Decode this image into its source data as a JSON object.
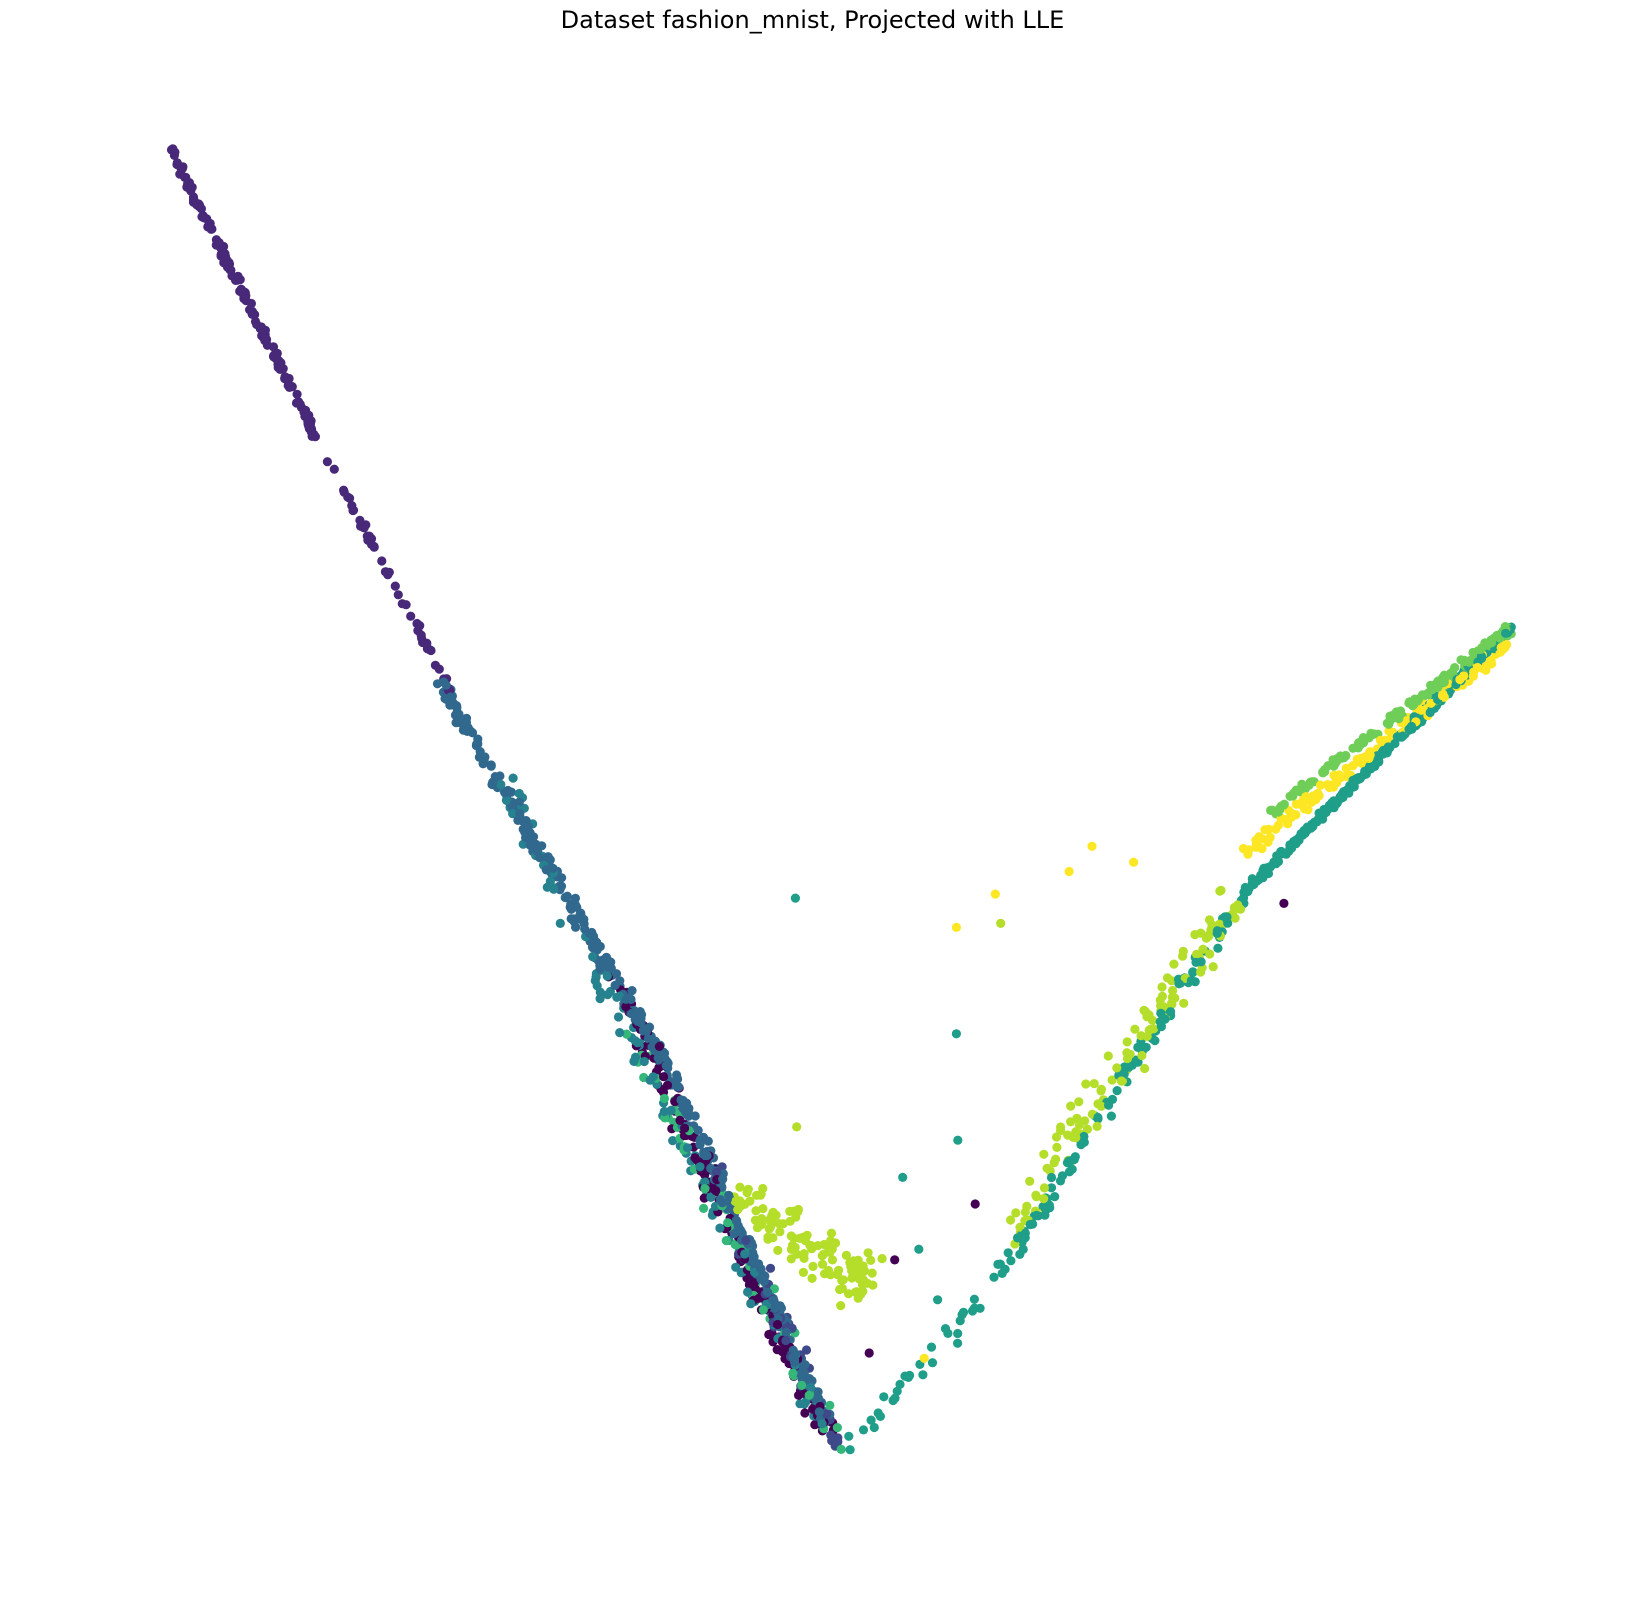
{
  "chart_data": {
    "type": "scatter",
    "title": "Dataset fashion_mnist, Projected with LLE",
    "xlabel": "",
    "ylabel": "",
    "axes_visible": false,
    "grid": false,
    "legend": "none",
    "xlim": [
      0,
      100
    ],
    "ylim": [
      0,
      100
    ],
    "colormap": "viridis",
    "class_colors": {
      "0": "#440154",
      "1": "#482878",
      "2": "#3e4989",
      "3": "#31688e",
      "4": "#26828e",
      "5": "#1f9e89",
      "6": "#35b779",
      "7": "#6ece58",
      "8": "#b5de2b",
      "9": "#fde725"
    },
    "segments": [
      {
        "class": 1,
        "from": [
          0,
          100
        ],
        "to": [
          11,
          78
        ],
        "count": 160,
        "jitter": 0.25
      },
      {
        "class": 1,
        "from": [
          11,
          78
        ],
        "to": [
          21,
          59
        ],
        "count": 50,
        "jitter": 0.2
      },
      {
        "class": 3,
        "from": [
          20,
          60
        ],
        "to": [
          37,
          31
        ],
        "count": 230,
        "jitter": 0.45
      },
      {
        "class": 3,
        "from": [
          37,
          31
        ],
        "to": [
          49,
          4
        ],
        "count": 200,
        "jitter": 0.45
      },
      {
        "class": 4,
        "from": [
          24,
          54
        ],
        "to": [
          49,
          3
        ],
        "count": 120,
        "jitter": 0.7
      },
      {
        "class": 0,
        "from": [
          33,
          38
        ],
        "to": [
          49,
          3
        ],
        "count": 150,
        "jitter": 0.7
      },
      {
        "class": 6,
        "from": [
          34,
          34
        ],
        "to": [
          50,
          2
        ],
        "count": 60,
        "jitter": 0.8
      },
      {
        "class": 2,
        "from": [
          40,
          24
        ],
        "to": [
          50,
          2
        ],
        "count": 45,
        "jitter": 0.8
      },
      {
        "class": 5,
        "from": [
          50,
          2
        ],
        "to": [
          61,
          14
        ],
        "count": 30,
        "jitter": 0.6
      },
      {
        "class": 5,
        "from": [
          61,
          14
        ],
        "to": [
          80,
          44
        ],
        "count": 110,
        "jitter": 0.5
      },
      {
        "class": 5,
        "from": [
          80,
          44
        ],
        "to": [
          100,
          64
        ],
        "count": 280,
        "jitter": 0.25
      },
      {
        "class": 7,
        "from": [
          82,
          50
        ],
        "to": [
          100,
          64
        ],
        "count": 150,
        "jitter": 0.3
      },
      {
        "class": 9,
        "from": [
          80,
          47
        ],
        "to": [
          100,
          63
        ],
        "count": 150,
        "jitter": 0.45
      },
      {
        "class": 8,
        "from": [
          62,
          18
        ],
        "to": [
          80,
          44
        ],
        "count": 120,
        "jitter": 1.4
      },
      {
        "class": 8,
        "from": [
          42,
          22
        ],
        "to": [
          52,
          14
        ],
        "count": 110,
        "jitter": 1.8
      }
    ],
    "points": [
      {
        "class": 5,
        "x": 46.6,
        "y": 43.6
      },
      {
        "class": 8,
        "x": 46.7,
        "y": 26.4
      },
      {
        "class": 5,
        "x": 58.7,
        "y": 25.4
      },
      {
        "class": 5,
        "x": 58.6,
        "y": 33.4
      },
      {
        "class": 9,
        "x": 58.6,
        "y": 41.4
      },
      {
        "class": 9,
        "x": 61.5,
        "y": 43.9
      },
      {
        "class": 8,
        "x": 61.9,
        "y": 41.7
      },
      {
        "class": 9,
        "x": 67.0,
        "y": 45.6
      },
      {
        "class": 9,
        "x": 68.7,
        "y": 47.5
      },
      {
        "class": 9,
        "x": 71.8,
        "y": 46.3
      },
      {
        "class": 0,
        "x": 83.0,
        "y": 43.2
      },
      {
        "class": 0,
        "x": 60.0,
        "y": 20.6
      },
      {
        "class": 5,
        "x": 54.6,
        "y": 22.6
      },
      {
        "class": 5,
        "x": 55.8,
        "y": 17.2
      },
      {
        "class": 5,
        "x": 57.2,
        "y": 13.4
      },
      {
        "class": 9,
        "x": 56.2,
        "y": 9.0
      },
      {
        "class": 0,
        "x": 52.1,
        "y": 9.4
      },
      {
        "class": 0,
        "x": 54.0,
        "y": 16.4
      }
    ]
  }
}
